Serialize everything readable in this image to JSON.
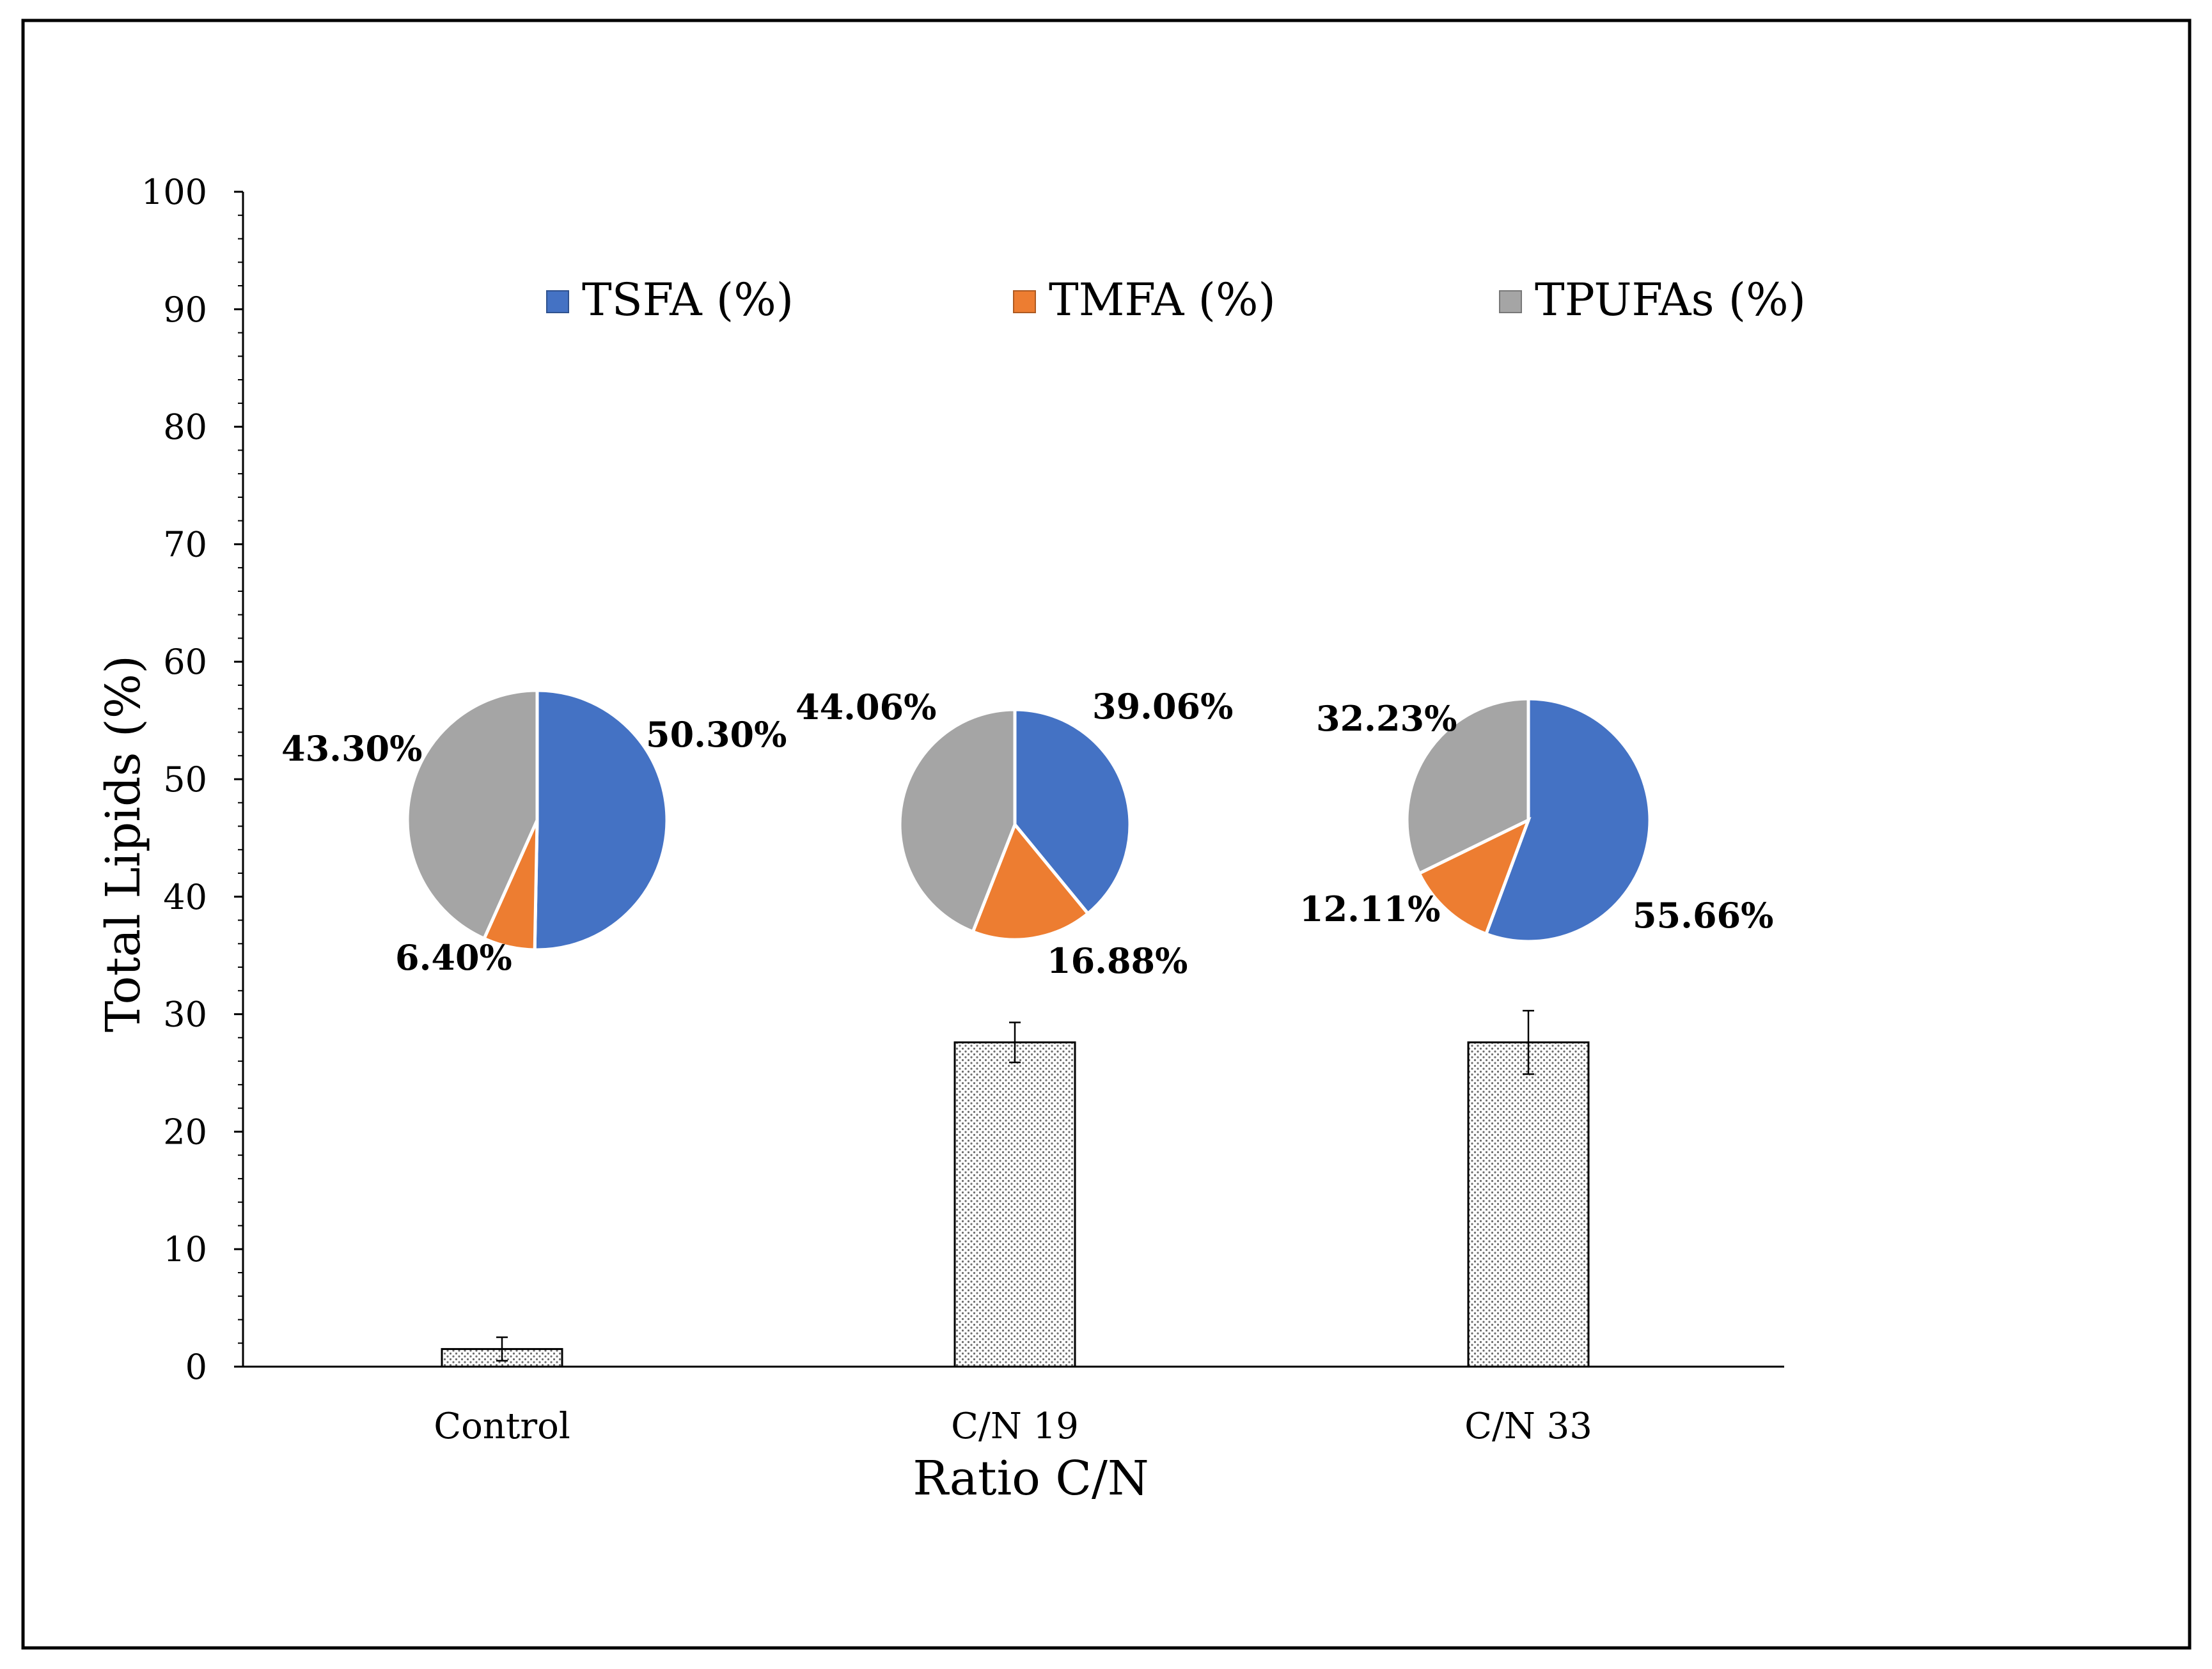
{
  "chart_data": [
    {
      "type": "bar",
      "categories": [
        "Control",
        "C/N 19",
        "C/N 33"
      ],
      "values": [
        1.5,
        27.6,
        27.6
      ],
      "error": [
        1.0,
        1.7,
        2.7
      ],
      "xlabel": "Ratio C/N",
      "ylabel": "Total Lipids (%)",
      "ylim": [
        0,
        100
      ],
      "yticks": [
        0,
        10,
        20,
        30,
        40,
        50,
        60,
        70,
        80,
        90,
        100
      ],
      "grid": false,
      "bar_fill": "dotted-pattern"
    },
    {
      "type": "pie",
      "legend": [
        {
          "label": "TSFA (%)",
          "color": "#4472C4"
        },
        {
          "label": "TMFA (%)",
          "color": "#ED7D31"
        },
        {
          "label": "TPUFAs (%)",
          "color": "#A5A5A5"
        }
      ],
      "legend_position": "top",
      "pies": [
        {
          "category": "Control",
          "values": [
            50.3,
            6.4,
            43.3
          ],
          "labels": [
            "50.30%",
            "6.40%",
            "43.30%"
          ]
        },
        {
          "category": "C/N 19",
          "values": [
            39.06,
            16.88,
            44.06
          ],
          "labels": [
            "39.06%",
            "16.88%",
            "44.06%"
          ]
        },
        {
          "category": "C/N 33",
          "values": [
            55.66,
            12.11,
            32.23
          ],
          "labels": [
            "55.66%",
            "12.11%",
            "32.23%"
          ]
        }
      ]
    }
  ]
}
